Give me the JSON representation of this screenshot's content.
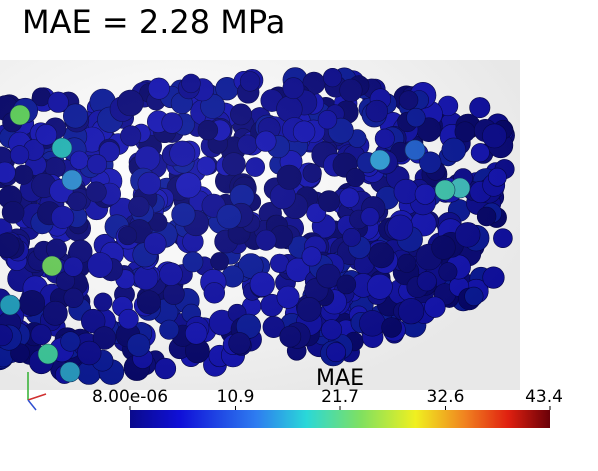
{
  "title": "MAE = 2.28 MPa",
  "colorbar": {
    "title": "MAE",
    "lim": [
      8e-06,
      43.4
    ],
    "ticks": [
      {
        "value": 8e-06,
        "label": "8.00e-06"
      },
      10.9,
      21.7,
      32.6,
      43.4
    ]
  }
}
